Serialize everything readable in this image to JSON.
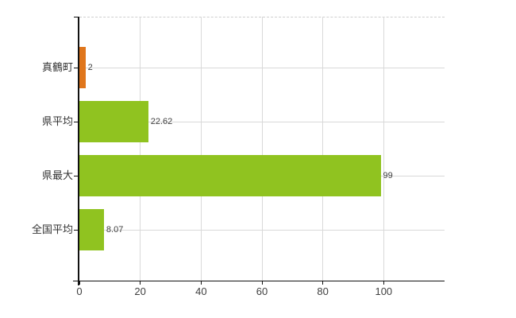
{
  "chart_data": {
    "type": "bar",
    "orientation": "horizontal",
    "categories": [
      "真鶴町",
      "県平均",
      "県最大",
      "全国平均"
    ],
    "values": [
      2,
      22.62,
      99,
      8.07
    ],
    "value_labels": [
      "2",
      "22.62",
      "99",
      "8.07"
    ],
    "bar_colors": [
      "#e0761c",
      "#90c320",
      "#90c320",
      "#90c320"
    ],
    "xlim": [
      0,
      120
    ],
    "x_ticks": [
      0,
      20,
      40,
      60,
      80,
      100
    ],
    "x_tick_labels": [
      "0",
      "20",
      "40",
      "60",
      "80",
      "100"
    ],
    "grid": true,
    "legend": "none"
  },
  "colors": {
    "highlight_bar": "#e0761c",
    "default_bar": "#90c320",
    "axis": "#111111",
    "gridline": "#d9d9d9",
    "top_border": "#cfcfcf",
    "category_text": "#333333",
    "value_text": "#404040",
    "background": "#ffffff"
  }
}
